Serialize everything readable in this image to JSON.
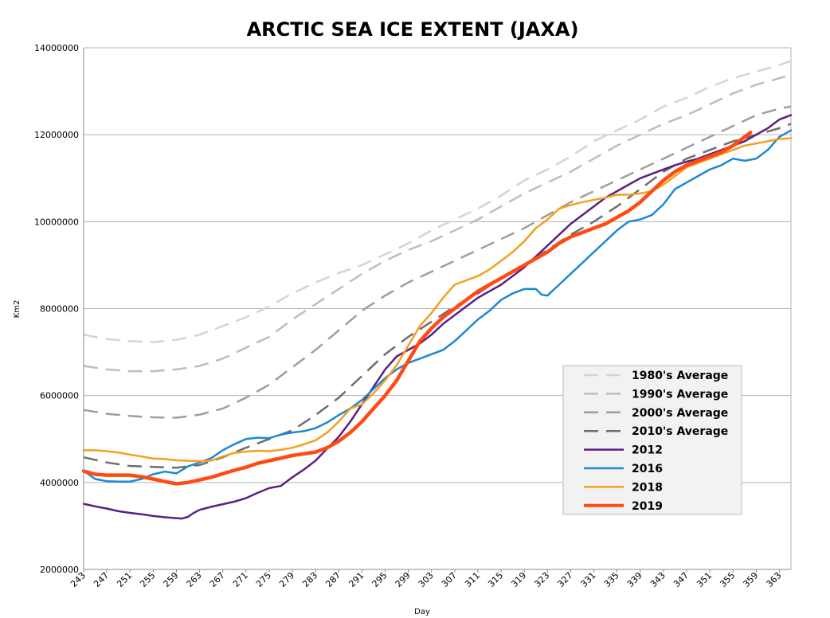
{
  "chart_data": {
    "type": "line",
    "title": "ARCTIC SEA ICE EXTENT (JAXA)",
    "xlabel": "Day",
    "ylabel": "Km2",
    "xlim": [
      243,
      365
    ],
    "ylim": [
      2000000,
      14000000
    ],
    "x_ticks": [
      243,
      247,
      251,
      255,
      259,
      263,
      267,
      271,
      275,
      279,
      283,
      287,
      291,
      295,
      299,
      303,
      307,
      311,
      315,
      319,
      323,
      327,
      331,
      335,
      339,
      343,
      347,
      351,
      355,
      359,
      363
    ],
    "y_ticks": [
      2000000,
      4000000,
      6000000,
      8000000,
      10000000,
      12000000,
      14000000
    ],
    "y_tick_labels": [
      "2000000",
      "4000000",
      "6000000",
      "8000000",
      "10000000",
      "12000000",
      "14000000"
    ],
    "grid": "horizontal",
    "legend_position": "right",
    "series": [
      {
        "name": "1980's Average",
        "color": "#d4d4d4",
        "dash": true,
        "width": 2.5,
        "x": [
          243,
          247,
          251,
          255,
          259,
          263,
          267,
          271,
          275,
          279,
          283,
          287,
          291,
          295,
          299,
          303,
          307,
          311,
          315,
          319,
          323,
          327,
          331,
          335,
          339,
          343,
          347,
          351,
          355,
          359,
          363,
          365
        ],
        "values": [
          7400000,
          7300000,
          7250000,
          7230000,
          7280000,
          7400000,
          7600000,
          7800000,
          8050000,
          8350000,
          8600000,
          8820000,
          9000000,
          9250000,
          9500000,
          9800000,
          10050000,
          10300000,
          10600000,
          10950000,
          11200000,
          11500000,
          11850000,
          12100000,
          12350000,
          12650000,
          12850000,
          13100000,
          13300000,
          13450000,
          13600000,
          13700000
        ]
      },
      {
        "name": "1990's Average",
        "color": "#bdbdbd",
        "dash": true,
        "width": 2.5,
        "x": [
          243,
          247,
          251,
          255,
          259,
          263,
          267,
          271,
          275,
          279,
          283,
          287,
          291,
          295,
          299,
          303,
          307,
          311,
          315,
          319,
          323,
          327,
          331,
          335,
          339,
          343,
          347,
          351,
          355,
          359,
          363,
          365
        ],
        "values": [
          6680000,
          6600000,
          6560000,
          6560000,
          6600000,
          6680000,
          6850000,
          7100000,
          7350000,
          7750000,
          8100000,
          8450000,
          8800000,
          9100000,
          9350000,
          9550000,
          9800000,
          10050000,
          10350000,
          10650000,
          10900000,
          11150000,
          11450000,
          11750000,
          12000000,
          12250000,
          12450000,
          12700000,
          12950000,
          13150000,
          13300000,
          13380000
        ]
      },
      {
        "name": "2000's Average",
        "color": "#9e9e9e",
        "dash": true,
        "width": 2.5,
        "x": [
          243,
          247,
          251,
          255,
          259,
          263,
          267,
          271,
          275,
          279,
          283,
          287,
          291,
          295,
          299,
          303,
          307,
          311,
          315,
          319,
          323,
          327,
          331,
          335,
          339,
          343,
          347,
          351,
          355,
          359,
          363,
          365
        ],
        "values": [
          5670000,
          5580000,
          5530000,
          5500000,
          5490000,
          5560000,
          5700000,
          5950000,
          6250000,
          6650000,
          7050000,
          7500000,
          7950000,
          8300000,
          8600000,
          8850000,
          9100000,
          9350000,
          9600000,
          9850000,
          10150000,
          10450000,
          10700000,
          10950000,
          11200000,
          11450000,
          11700000,
          11950000,
          12200000,
          12450000,
          12600000,
          12650000
        ]
      },
      {
        "name": "2010's Average",
        "color": "#6e6e6e",
        "dash": true,
        "width": 2.5,
        "x": [
          243,
          247,
          251,
          255,
          259,
          263,
          267,
          271,
          275,
          279,
          283,
          287,
          291,
          295,
          299,
          303,
          307,
          311,
          315,
          319,
          323,
          327,
          331,
          335,
          339,
          343,
          347,
          351,
          355,
          359,
          363,
          365
        ],
        "values": [
          4580000,
          4460000,
          4380000,
          4360000,
          4340000,
          4400000,
          4580000,
          4800000,
          5000000,
          5200000,
          5550000,
          5950000,
          6450000,
          6950000,
          7350000,
          7700000,
          8050000,
          8350000,
          8700000,
          9000000,
          9350000,
          9700000,
          10000000,
          10350000,
          10750000,
          11150000,
          11450000,
          11650000,
          11850000,
          12000000,
          12150000,
          12250000
        ]
      },
      {
        "name": "2012",
        "color": "#5b2182",
        "dash": false,
        "width": 2.5,
        "x": [
          243,
          245,
          247,
          249,
          251,
          253,
          255,
          257,
          259,
          260,
          261,
          262,
          263,
          265,
          267,
          269,
          271,
          273,
          275,
          277,
          279,
          281,
          283,
          285,
          287,
          289,
          291,
          293,
          295,
          297,
          299,
          301,
          303,
          305,
          307,
          309,
          311,
          313,
          315,
          317,
          319,
          321,
          323,
          325,
          327,
          329,
          331,
          333,
          335,
          337,
          339,
          341,
          343,
          345,
          347,
          349,
          351,
          353,
          355,
          357,
          359,
          361,
          363,
          365
        ],
        "values": [
          3510000,
          3450000,
          3400000,
          3340000,
          3300000,
          3270000,
          3230000,
          3200000,
          3180000,
          3170000,
          3210000,
          3300000,
          3370000,
          3440000,
          3500000,
          3560000,
          3640000,
          3760000,
          3870000,
          3920000,
          4120000,
          4300000,
          4500000,
          4780000,
          5050000,
          5400000,
          5800000,
          6200000,
          6600000,
          6900000,
          7050000,
          7200000,
          7400000,
          7650000,
          7850000,
          8050000,
          8250000,
          8400000,
          8550000,
          8750000,
          8950000,
          9200000,
          9450000,
          9700000,
          9950000,
          10150000,
          10350000,
          10550000,
          10700000,
          10850000,
          11000000,
          11100000,
          11200000,
          11300000,
          11380000,
          11450000,
          11550000,
          11650000,
          11750000,
          11850000,
          12000000,
          12150000,
          12350000,
          12450000
        ]
      },
      {
        "name": "2016",
        "color": "#1e88d2",
        "dash": false,
        "width": 2.5,
        "x": [
          243,
          245,
          247,
          249,
          251,
          253,
          255,
          257,
          259,
          261,
          263,
          265,
          267,
          269,
          271,
          273,
          275,
          277,
          279,
          281,
          283,
          285,
          287,
          289,
          291,
          293,
          295,
          297,
          299,
          301,
          303,
          305,
          307,
          309,
          311,
          313,
          315,
          317,
          319,
          321,
          322,
          323,
          325,
          327,
          329,
          331,
          333,
          335,
          337,
          339,
          341,
          343,
          345,
          347,
          349,
          351,
          353,
          355,
          357,
          359,
          361,
          363,
          365
        ],
        "values": [
          4270000,
          4080000,
          4030000,
          4020000,
          4020000,
          4080000,
          4190000,
          4250000,
          4210000,
          4370000,
          4460000,
          4560000,
          4740000,
          4880000,
          5000000,
          5030000,
          5020000,
          5100000,
          5150000,
          5180000,
          5250000,
          5380000,
          5550000,
          5700000,
          5900000,
          6150000,
          6400000,
          6600000,
          6750000,
          6850000,
          6950000,
          7050000,
          7250000,
          7500000,
          7750000,
          7950000,
          8200000,
          8350000,
          8450000,
          8450000,
          8320000,
          8300000,
          8550000,
          8800000,
          9050000,
          9300000,
          9550000,
          9800000,
          10000000,
          10050000,
          10150000,
          10400000,
          10750000,
          10900000,
          11050000,
          11200000,
          11300000,
          11450000,
          11400000,
          11450000,
          11650000,
          11950000,
          12100000
        ]
      },
      {
        "name": "2018",
        "color": "#f4a020",
        "dash": false,
        "width": 2.5,
        "x": [
          243,
          245,
          247,
          249,
          251,
          253,
          255,
          257,
          259,
          261,
          263,
          265,
          267,
          269,
          271,
          273,
          275,
          277,
          279,
          281,
          283,
          285,
          287,
          289,
          291,
          293,
          295,
          297,
          299,
          301,
          303,
          305,
          307,
          309,
          311,
          313,
          315,
          317,
          319,
          321,
          323,
          325,
          327,
          329,
          331,
          333,
          335,
          337,
          339,
          341,
          343,
          345,
          347,
          349,
          351,
          353,
          355,
          357,
          359,
          361,
          363,
          365
        ],
        "values": [
          4740000,
          4740000,
          4720000,
          4690000,
          4640000,
          4600000,
          4550000,
          4540000,
          4510000,
          4500000,
          4490000,
          4500000,
          4600000,
          4680000,
          4710000,
          4730000,
          4720000,
          4750000,
          4800000,
          4880000,
          4970000,
          5150000,
          5400000,
          5700000,
          5800000,
          6050000,
          6350000,
          6700000,
          7150000,
          7600000,
          7900000,
          8250000,
          8550000,
          8650000,
          8750000,
          8900000,
          9100000,
          9300000,
          9550000,
          9850000,
          10050000,
          10300000,
          10380000,
          10450000,
          10500000,
          10550000,
          10620000,
          10620000,
          10650000,
          10700000,
          10850000,
          11050000,
          11250000,
          11350000,
          11450000,
          11550000,
          11650000,
          11750000,
          11800000,
          11850000,
          11900000,
          11920000
        ]
      },
      {
        "name": "2019",
        "color": "#ff4a12",
        "dash": false,
        "width": 4.5,
        "x": [
          243,
          245,
          247,
          249,
          251,
          253,
          255,
          257,
          259,
          261,
          263,
          265,
          267,
          269,
          271,
          273,
          275,
          277,
          279,
          281,
          283,
          285,
          287,
          289,
          291,
          293,
          295,
          297,
          299,
          301,
          303,
          305,
          307,
          309,
          311,
          313,
          315,
          317,
          319,
          321,
          323,
          325,
          327,
          329,
          331,
          333,
          335,
          337,
          339,
          341,
          343,
          345,
          347,
          349,
          351,
          353,
          355,
          357,
          358
        ],
        "values": [
          4260000,
          4190000,
          4170000,
          4170000,
          4170000,
          4130000,
          4080000,
          4020000,
          3970000,
          4000000,
          4060000,
          4120000,
          4200000,
          4280000,
          4350000,
          4440000,
          4500000,
          4560000,
          4620000,
          4660000,
          4700000,
          4800000,
          4950000,
          5150000,
          5400000,
          5700000,
          6000000,
          6350000,
          6800000,
          7250000,
          7550000,
          7800000,
          8000000,
          8200000,
          8400000,
          8550000,
          8700000,
          8850000,
          9000000,
          9150000,
          9300000,
          9500000,
          9650000,
          9750000,
          9850000,
          9950000,
          10100000,
          10250000,
          10450000,
          10700000,
          10950000,
          11150000,
          11300000,
          11400000,
          11500000,
          11600000,
          11750000,
          11950000,
          12050000
        ]
      }
    ]
  }
}
